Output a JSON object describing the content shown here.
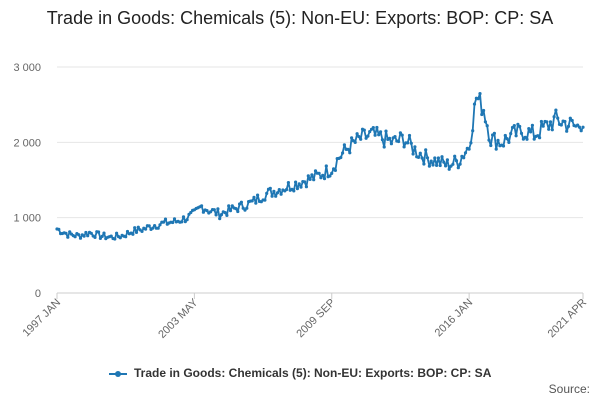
{
  "chart_data": {
    "type": "line",
    "title": "Trade in Goods: Chemicals (5): Non-EU: Exports: BOP: CP: SA",
    "xlabel": "",
    "ylabel": "",
    "x_start": "1997 JAN",
    "x_end": "2021 APR",
    "x_tick_labels": [
      "1997 JAN",
      "2003 MAY",
      "2009 SEP",
      "2016 JAN",
      "2021 APR"
    ],
    "y_tick_labels": [
      "0",
      "1 000",
      "2 000",
      "3 000"
    ],
    "ylim": [
      0,
      3000
    ],
    "grid": true,
    "legend_position": "bottom",
    "series": [
      {
        "name": "Trade in Goods: Chemicals (5): Non-EU: Exports: BOP: CP: SA",
        "color": "#1f77b4",
        "anchors": [
          [
            "1997 JAN",
            850
          ],
          [
            "1997 JUL",
            780
          ],
          [
            "1998 JAN",
            760
          ],
          [
            "1998 JUL",
            800
          ],
          [
            "1999 JAN",
            760
          ],
          [
            "1999 JUL",
            740
          ],
          [
            "2000 JAN",
            760
          ],
          [
            "2000 JUL",
            820
          ],
          [
            "2001 JAN",
            850
          ],
          [
            "2001 JUL",
            900
          ],
          [
            "2002 JAN",
            930
          ],
          [
            "2002 JUL",
            950
          ],
          [
            "2003 JAN",
            1000
          ],
          [
            "2003 MAY",
            1050
          ],
          [
            "2003 SEP",
            1150
          ],
          [
            "2004 JAN",
            1100
          ],
          [
            "2004 JUL",
            1050
          ],
          [
            "2005 JAN",
            1100
          ],
          [
            "2005 JUL",
            1150
          ],
          [
            "2006 JAN",
            1200
          ],
          [
            "2006 JUL",
            1300
          ],
          [
            "2007 JAN",
            1350
          ],
          [
            "2007 JUL",
            1400
          ],
          [
            "2008 JAN",
            1450
          ],
          [
            "2008 JUL",
            1500
          ],
          [
            "2009 JAN",
            1550
          ],
          [
            "2009 SEP",
            1650
          ],
          [
            "2010 JAN",
            1800
          ],
          [
            "2010 JUL",
            1950
          ],
          [
            "2011 JAN",
            2050
          ],
          [
            "2011 JUL",
            2100
          ],
          [
            "2012 JAN",
            2050
          ],
          [
            "2012 JUL",
            2000
          ],
          [
            "2013 JAN",
            2050
          ],
          [
            "2013 JUL",
            1900
          ],
          [
            "2014 JAN",
            1800
          ],
          [
            "2014 JUL",
            1750
          ],
          [
            "2015 JAN",
            1700
          ],
          [
            "2015 JUL",
            1750
          ],
          [
            "2016 JAN",
            1950
          ],
          [
            "2016 MAY",
            2600
          ],
          [
            "2016 SEP",
            2450
          ],
          [
            "2017 JAN",
            2050
          ],
          [
            "2017 JUL",
            2000
          ],
          [
            "2018 JAN",
            2100
          ],
          [
            "2018 JUL",
            2150
          ],
          [
            "2019 JAN",
            2100
          ],
          [
            "2019 JUL",
            2200
          ],
          [
            "2020 JAN",
            2300
          ],
          [
            "2020 JUL",
            2250
          ],
          [
            "2021 JAN",
            2200
          ],
          [
            "2021 APR",
            2300
          ]
        ]
      }
    ]
  },
  "legend": {
    "label": "Trade in Goods: Chemicals (5): Non-EU: Exports: BOP: CP: SA"
  },
  "footer": {
    "source_label": "Source:"
  }
}
